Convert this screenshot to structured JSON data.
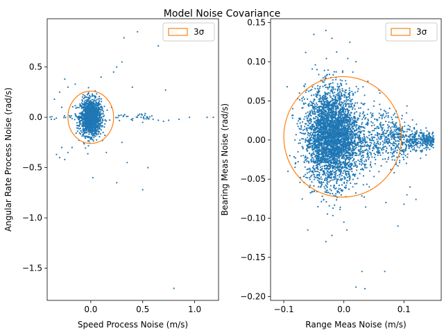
{
  "figure": {
    "suptitle": "Model Noise Covariance"
  },
  "chart_data": [
    {
      "type": "scatter",
      "xlabel": "Speed Process Noise (m/s)",
      "ylabel": "Angular Rate Process Noise (rad/s)",
      "xlim": [
        -0.42,
        1.23
      ],
      "ylim": [
        -1.82,
        0.98
      ],
      "xticks": [
        {
          "value": 0.0,
          "label": "0.0"
        },
        {
          "value": 0.5,
          "label": "0.5"
        },
        {
          "value": 1.0,
          "label": "1.0"
        }
      ],
      "yticks": [
        {
          "value": 0.5,
          "label": "0.5"
        },
        {
          "value": 0.0,
          "label": "0.0"
        },
        {
          "value": -0.5,
          "label": "−0.5"
        },
        {
          "value": -1.0,
          "label": "−1.0"
        },
        {
          "value": -1.5,
          "label": "−1.5"
        }
      ],
      "legend": {
        "label": "3σ",
        "position": "upper-right"
      },
      "colors": {
        "points": "#1f77b4",
        "ellipse": "#ff7f0e"
      },
      "ellipse": {
        "center": [
          0.0,
          0.0
        ],
        "semi_x": 0.22,
        "semi_y": 0.26
      },
      "cluster": {
        "center": [
          0.0,
          0.0
        ],
        "sigma_x": 0.05,
        "sigma_y": 0.09
      },
      "points": [
        [
          0.32,
          0.79
        ],
        [
          0.45,
          0.85
        ],
        [
          0.65,
          0.71
        ],
        [
          0.72,
          0.27
        ],
        [
          0.8,
          -1.7
        ],
        [
          0.5,
          -0.72
        ],
        [
          0.55,
          -0.5
        ],
        [
          0.3,
          0.55
        ],
        [
          0.25,
          0.5
        ],
        [
          0.22,
          0.45
        ],
        [
          -0.33,
          -0.37
        ],
        [
          -0.3,
          -0.4
        ],
        [
          -0.28,
          -0.3
        ],
        [
          -0.25,
          -0.42
        ],
        [
          -0.22,
          -0.35
        ],
        [
          -0.35,
          0.18
        ],
        [
          -0.3,
          0.25
        ],
        [
          -0.25,
          0.38
        ],
        [
          -0.22,
          0.3
        ],
        [
          -0.28,
          0.1
        ],
        [
          -0.38,
          -0.02
        ],
        [
          -0.35,
          -0.02
        ],
        [
          0.4,
          -0.03
        ],
        [
          0.6,
          -0.02
        ],
        [
          0.75,
          -0.03
        ],
        [
          0.85,
          -0.02
        ],
        [
          0.95,
          0.0
        ],
        [
          1.12,
          0.0
        ],
        [
          1.18,
          0.0
        ],
        [
          0.3,
          -0.25
        ],
        [
          0.35,
          -0.45
        ],
        [
          0.25,
          -0.65
        ],
        [
          0.4,
          0.3
        ],
        [
          0.02,
          -0.6
        ],
        [
          0.5,
          -0.05
        ],
        [
          -0.15,
          0.33
        ],
        [
          0.1,
          0.4
        ],
        [
          0.15,
          -0.35
        ],
        [
          -0.18,
          -0.3
        ],
        [
          0.2,
          0.1
        ],
        [
          0.45,
          0.0
        ],
        [
          0.55,
          -0.01
        ],
        [
          0.65,
          -0.03
        ],
        [
          0.7,
          -0.04
        ],
        [
          0.52,
          0.02
        ]
      ]
    },
    {
      "type": "scatter",
      "xlabel": "Range Meas Noise (m/s)",
      "ylabel": "Bearing Meas Noise (rad/s)",
      "xlim": [
        -0.122,
        0.162
      ],
      "ylim": [
        -0.205,
        0.155
      ],
      "xticks": [
        {
          "value": -0.1,
          "label": "−0.1"
        },
        {
          "value": 0.0,
          "label": "0.0"
        },
        {
          "value": 0.1,
          "label": "0.1"
        }
      ],
      "yticks": [
        {
          "value": 0.15,
          "label": "0.15"
        },
        {
          "value": 0.1,
          "label": "0.10"
        },
        {
          "value": 0.05,
          "label": "0.05"
        },
        {
          "value": 0.0,
          "label": "0.00"
        },
        {
          "value": -0.05,
          "label": "−0.05"
        },
        {
          "value": -0.1,
          "label": "−0.10"
        },
        {
          "value": -0.15,
          "label": "−0.15"
        },
        {
          "value": -0.2,
          "label": "−0.20"
        }
      ],
      "legend": {
        "label": "3σ",
        "position": "upper-right"
      },
      "colors": {
        "points": "#1f77b4",
        "ellipse": "#ff7f0e"
      },
      "ellipse": {
        "center": [
          -0.002,
          0.004
        ],
        "semi_x": 0.098,
        "semi_y": 0.077
      },
      "cluster": {
        "center": [
          -0.02,
          0.005
        ],
        "sigma_x": 0.022,
        "sigma_y": 0.03
      },
      "tail": {
        "from": [
          0.0,
          0.0
        ],
        "to": [
          0.15,
          0.0
        ]
      },
      "points": [
        [
          0.02,
          -0.188
        ],
        [
          0.035,
          -0.19
        ],
        [
          0.03,
          -0.168
        ],
        [
          0.068,
          -0.168
        ],
        [
          0.09,
          -0.11
        ],
        [
          0.1,
          -0.082
        ],
        [
          0.12,
          -0.076
        ],
        [
          0.11,
          -0.06
        ],
        [
          0.105,
          -0.07
        ],
        [
          0.07,
          -0.08
        ],
        [
          -0.03,
          -0.13
        ],
        [
          -0.02,
          -0.122
        ],
        [
          0.005,
          -0.115
        ],
        [
          0.0,
          -0.105
        ],
        [
          -0.06,
          -0.115
        ],
        [
          -0.05,
          0.135
        ],
        [
          -0.03,
          0.14
        ],
        [
          -0.02,
          0.13
        ],
        [
          0.01,
          0.125
        ],
        [
          0.02,
          0.1
        ],
        [
          0.04,
          0.075
        ],
        [
          0.06,
          0.06
        ],
        [
          -0.085,
          0.04
        ],
        [
          -0.09,
          -0.02
        ],
        [
          0.14,
          0.0
        ]
      ]
    }
  ]
}
